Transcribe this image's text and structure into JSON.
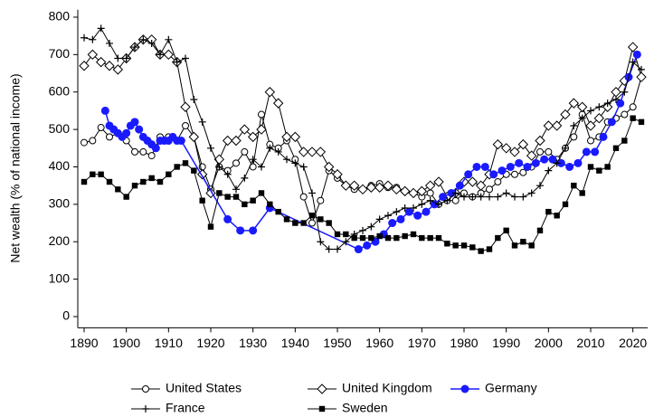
{
  "chart_data": {
    "type": "line",
    "y_label": "Net wealth (% of national income)",
    "xlim": [
      1888.5,
      2023.5
    ],
    "xticks": [
      1890,
      1900,
      1910,
      1920,
      1930,
      1940,
      1950,
      1960,
      1970,
      1980,
      1990,
      2000,
      2010,
      2020
    ],
    "ylim": [
      -30,
      820
    ],
    "yticks": [
      0,
      100,
      200,
      300,
      400,
      500,
      600,
      700,
      800
    ],
    "grid": false,
    "legend": "bottom",
    "series": [
      {
        "name": "United States",
        "color": "#000000",
        "marker": "open-circle",
        "x": [
          1890,
          1892,
          1894,
          1896,
          1898,
          1900,
          1902,
          1904,
          1906,
          1908,
          1910,
          1912,
          1914,
          1916,
          1918,
          1920,
          1922,
          1924,
          1926,
          1928,
          1930,
          1932,
          1934,
          1936,
          1938,
          1940,
          1942,
          1944,
          1946,
          1948,
          1950,
          1952,
          1954,
          1956,
          1958,
          1960,
          1962,
          1964,
          1966,
          1968,
          1970,
          1972,
          1974,
          1976,
          1978,
          1980,
          1982,
          1984,
          1986,
          1988,
          1990,
          1992,
          1994,
          1996,
          1998,
          2000,
          2002,
          2004,
          2006,
          2008,
          2010,
          2012,
          2014,
          2016,
          2018,
          2020,
          2022
        ],
        "values": [
          465,
          470,
          505,
          480,
          490,
          470,
          440,
          440,
          430,
          480,
          480,
          470,
          510,
          480,
          400,
          340,
          400,
          390,
          410,
          440,
          400,
          540,
          460,
          450,
          470,
          420,
          320,
          250,
          310,
          390,
          370,
          350,
          340,
          340,
          350,
          355,
          345,
          345,
          335,
          330,
          320,
          330,
          300,
          310,
          310,
          330,
          320,
          330,
          340,
          360,
          380,
          380,
          385,
          400,
          440,
          440,
          420,
          450,
          480,
          540,
          470,
          480,
          520,
          530,
          540,
          560,
          640
        ]
      },
      {
        "name": "United Kingdom",
        "color": "#000000",
        "marker": "open-diamond",
        "x": [
          1890,
          1892,
          1894,
          1896,
          1898,
          1900,
          1902,
          1904,
          1906,
          1908,
          1910,
          1912,
          1914,
          1916,
          1918,
          1920,
          1922,
          1924,
          1926,
          1928,
          1930,
          1932,
          1934,
          1936,
          1938,
          1940,
          1942,
          1944,
          1946,
          1948,
          1950,
          1952,
          1954,
          1956,
          1958,
          1960,
          1962,
          1964,
          1966,
          1968,
          1970,
          1972,
          1974,
          1976,
          1978,
          1980,
          1982,
          1984,
          1986,
          1988,
          1990,
          1992,
          1994,
          1996,
          1998,
          2000,
          2002,
          2004,
          2006,
          2008,
          2010,
          2012,
          2014,
          2016,
          2018,
          2020,
          2022
        ],
        "values": [
          670,
          700,
          680,
          670,
          660,
          690,
          720,
          740,
          740,
          700,
          700,
          680,
          560,
          480,
          380,
          330,
          420,
          470,
          470,
          500,
          480,
          500,
          600,
          570,
          480,
          480,
          440,
          440,
          440,
          400,
          380,
          350,
          350,
          340,
          345,
          345,
          350,
          340,
          335,
          330,
          335,
          350,
          360,
          320,
          330,
          360,
          360,
          350,
          380,
          460,
          450,
          440,
          460,
          430,
          470,
          510,
          510,
          540,
          570,
          560,
          510,
          530,
          560,
          600,
          630,
          720,
          640
        ]
      },
      {
        "name": "Germany",
        "color": "#1a1aff",
        "marker": "filled-circle",
        "x": [
          1895,
          1896,
          1897,
          1898,
          1899,
          1900,
          1901,
          1902,
          1903,
          1904,
          1905,
          1906,
          1907,
          1908,
          1909,
          1910,
          1911,
          1912,
          1913,
          1924,
          1927,
          1930,
          1934,
          1955,
          1957,
          1959,
          1961,
          1963,
          1965,
          1967,
          1969,
          1971,
          1973,
          1975,
          1977,
          1979,
          1981,
          1983,
          1985,
          1987,
          1989,
          1991,
          1993,
          1995,
          1997,
          1999,
          2001,
          2003,
          2005,
          2007,
          2009,
          2011,
          2013,
          2015,
          2017,
          2019,
          2021
        ],
        "values": [
          550,
          510,
          500,
          490,
          480,
          490,
          510,
          520,
          500,
          480,
          470,
          460,
          450,
          470,
          470,
          470,
          480,
          470,
          470,
          260,
          230,
          230,
          290,
          180,
          190,
          200,
          220,
          250,
          260,
          280,
          270,
          280,
          300,
          320,
          330,
          350,
          380,
          400,
          400,
          380,
          390,
          400,
          410,
          400,
          410,
          420,
          420,
          410,
          400,
          410,
          440,
          440,
          480,
          520,
          570,
          640,
          700
        ]
      },
      {
        "name": "France",
        "color": "#000000",
        "marker": "plus",
        "x": [
          1890,
          1892,
          1894,
          1896,
          1898,
          1900,
          1902,
          1904,
          1906,
          1908,
          1910,
          1912,
          1914,
          1916,
          1918,
          1920,
          1922,
          1924,
          1926,
          1928,
          1930,
          1932,
          1934,
          1936,
          1938,
          1940,
          1942,
          1944,
          1946,
          1948,
          1950,
          1952,
          1954,
          1956,
          1958,
          1960,
          1962,
          1964,
          1966,
          1968,
          1970,
          1972,
          1974,
          1976,
          1978,
          1980,
          1982,
          1984,
          1986,
          1988,
          1990,
          1992,
          1994,
          1996,
          1998,
          2000,
          2002,
          2004,
          2006,
          2008,
          2010,
          2012,
          2014,
          2016,
          2018,
          2020,
          2022
        ],
        "values": [
          745,
          740,
          770,
          730,
          690,
          690,
          720,
          740,
          730,
          700,
          740,
          680,
          690,
          580,
          520,
          450,
          400,
          380,
          340,
          370,
          420,
          400,
          450,
          440,
          420,
          410,
          400,
          330,
          200,
          180,
          180,
          200,
          220,
          230,
          240,
          260,
          270,
          280,
          290,
          290,
          300,
          310,
          300,
          310,
          330,
          320,
          320,
          320,
          320,
          320,
          330,
          320,
          320,
          330,
          350,
          390,
          410,
          450,
          510,
          530,
          550,
          560,
          570,
          580,
          600,
          680,
          660
        ]
      },
      {
        "name": "Sweden",
        "color": "#000000",
        "marker": "filled-square",
        "x": [
          1890,
          1892,
          1894,
          1896,
          1898,
          1900,
          1902,
          1904,
          1906,
          1908,
          1910,
          1912,
          1914,
          1916,
          1918,
          1920,
          1922,
          1924,
          1926,
          1928,
          1930,
          1932,
          1934,
          1936,
          1938,
          1940,
          1942,
          1944,
          1946,
          1948,
          1950,
          1952,
          1954,
          1956,
          1958,
          1960,
          1962,
          1964,
          1966,
          1968,
          1970,
          1972,
          1974,
          1976,
          1978,
          1980,
          1982,
          1984,
          1986,
          1988,
          1990,
          1992,
          1994,
          1996,
          1998,
          2000,
          2002,
          2004,
          2006,
          2008,
          2010,
          2012,
          2014,
          2016,
          2018,
          2020,
          2022
        ],
        "values": [
          360,
          380,
          380,
          360,
          340,
          320,
          350,
          360,
          370,
          360,
          380,
          400,
          410,
          390,
          310,
          240,
          330,
          320,
          320,
          300,
          310,
          330,
          300,
          280,
          260,
          250,
          250,
          270,
          260,
          250,
          220,
          220,
          210,
          210,
          210,
          215,
          210,
          210,
          215,
          220,
          210,
          210,
          210,
          195,
          190,
          190,
          185,
          175,
          180,
          210,
          230,
          190,
          200,
          190,
          230,
          280,
          270,
          300,
          350,
          330,
          400,
          390,
          400,
          450,
          470,
          530,
          520
        ]
      }
    ]
  }
}
